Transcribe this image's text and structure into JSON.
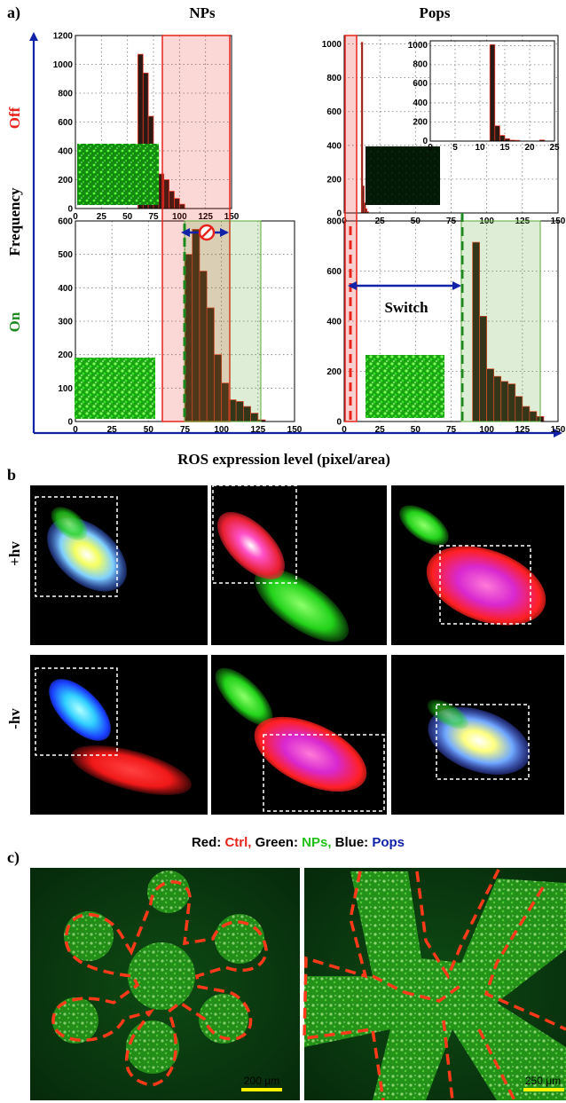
{
  "figure": {
    "panel_a": "a)",
    "panel_b": "b",
    "panel_c": "c)",
    "col_titles": [
      "NPs",
      "Pops"
    ],
    "row_labels": [
      "Off",
      "On"
    ],
    "y_axis_label": "Frequency",
    "x_axis_label": "ROS expression level (pixel/area)",
    "switch_label": "Switch",
    "scatter_row_labels": [
      "+hv",
      "-hv"
    ],
    "legend": {
      "red_prefix": "Red: ",
      "red_name": "Ctrl,",
      "green_prefix": " Green: ",
      "green_name": "NPs,",
      "blue_prefix": " Blue: ",
      "blue_name": "Pops"
    },
    "scalebars": [
      "200 μm",
      "250 μm"
    ],
    "colors": {
      "red": "#e8231c",
      "green": "#1e8a1e",
      "blue": "#1022a8",
      "hist_bar": "#2b1a13",
      "hist_edge": "#ff3a2a"
    }
  },
  "chart_data": [
    {
      "type": "bar",
      "panel": "NPs / Off",
      "xlim": [
        0,
        150
      ],
      "ylim": [
        0,
        1200
      ],
      "xticks": [
        "0",
        "25",
        "50",
        "75",
        "100",
        "125",
        "150"
      ],
      "yticks": [
        "0",
        "200",
        "400",
        "600",
        "800",
        "1000",
        "1200"
      ],
      "bin_width": 5,
      "x": [
        62.5,
        67.5,
        72.5,
        77.5,
        82.5,
        87.5,
        92.5,
        97.5,
        102.5
      ],
      "values": [
        1070,
        940,
        640,
        420,
        240,
        200,
        120,
        70,
        30
      ]
    },
    {
      "type": "bar",
      "panel": "Pops / Off",
      "xlim": [
        0,
        150
      ],
      "ylim": [
        0,
        1050
      ],
      "xticks": [
        "0",
        "25",
        "50",
        "75",
        "100",
        "125",
        "150"
      ],
      "yticks": [
        "0",
        "200",
        "400",
        "600",
        "800",
        "1000"
      ],
      "bin_width": 1,
      "x": [
        12.5,
        13.5,
        14.5,
        15.5,
        16.5
      ],
      "values": [
        1010,
        160,
        60,
        25,
        8
      ]
    },
    {
      "type": "bar",
      "panel": "Pops / Off inset",
      "xlim": [
        0,
        25
      ],
      "ylim": [
        0,
        1050
      ],
      "xticks": [
        "0",
        "5",
        "10",
        "15",
        "20",
        "25"
      ],
      "yticks": [
        "0",
        "200",
        "400",
        "600",
        "800",
        "1000"
      ],
      "bin_width": 1,
      "x": [
        12.5,
        13.5,
        14.5,
        15.5,
        16.5,
        17.5,
        22.5
      ],
      "values": [
        1010,
        160,
        60,
        25,
        10,
        8,
        12
      ]
    },
    {
      "type": "bar",
      "panel": "NPs / On",
      "xlim": [
        0,
        150
      ],
      "ylim": [
        0,
        600
      ],
      "xticks": [
        "0",
        "25",
        "50",
        "75",
        "100",
        "125",
        "150"
      ],
      "yticks": [
        "0",
        "100",
        "200",
        "300",
        "400",
        "500",
        "600"
      ],
      "bin_width": 5,
      "x": [
        77.5,
        82.5,
        87.5,
        92.5,
        97.5,
        102.5,
        107.5,
        112.5,
        117.5,
        122.5,
        127.5
      ],
      "values": [
        500,
        575,
        450,
        340,
        200,
        115,
        65,
        60,
        45,
        25,
        5
      ]
    },
    {
      "type": "bar",
      "panel": "Pops / On",
      "xlim": [
        0,
        150
      ],
      "ylim": [
        0,
        800
      ],
      "xticks": [
        "0",
        "25",
        "50",
        "75",
        "100",
        "125",
        "150"
      ],
      "yticks": [
        "0",
        "200",
        "400",
        "600",
        "800"
      ],
      "bin_width": 5,
      "x": [
        92.5,
        97.5,
        102.5,
        107.5,
        112.5,
        117.5,
        122.5,
        127.5,
        132.5,
        137.5
      ],
      "values": [
        715,
        420,
        210,
        180,
        160,
        150,
        100,
        60,
        40,
        20
      ]
    }
  ]
}
